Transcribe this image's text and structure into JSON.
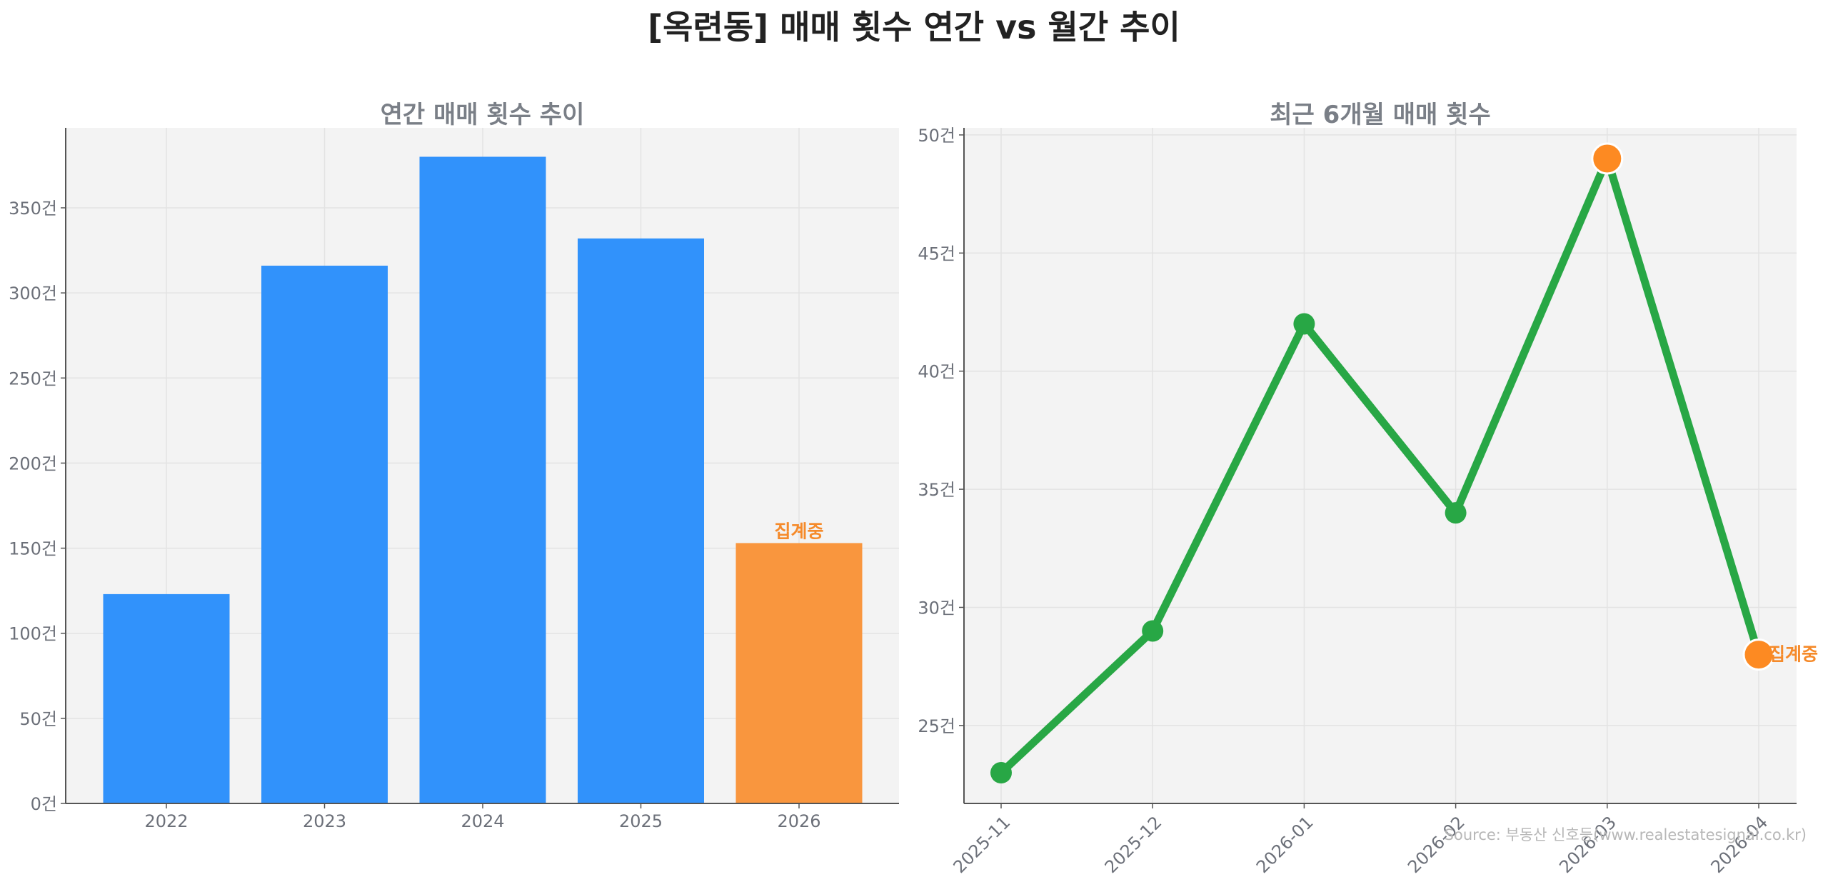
{
  "title": "[옥련동] 매매 횟수 연간 vs 월간 추이",
  "source": "Source: 부동산 신호등(www.realestatesignal.co.kr)",
  "colors": {
    "bar": "#3192fb",
    "highlight": "#f9963e",
    "line": "#28a745",
    "marker_highlight": "#fd8a22"
  },
  "chart_data": [
    {
      "type": "bar",
      "title": "연간 매매 횟수 추이",
      "categories": [
        "2022",
        "2023",
        "2024",
        "2025",
        "2026"
      ],
      "values": [
        123,
        316,
        380,
        332,
        153
      ],
      "highlight_index": 4,
      "annotation": "집계중",
      "ylim": [
        0,
        397
      ],
      "yticks": [
        0,
        50,
        100,
        150,
        200,
        250,
        300,
        350
      ],
      "y_unit": "건",
      "grid": true
    },
    {
      "type": "line",
      "title": "최근 6개월 매매 횟수",
      "categories": [
        "2025-11",
        "2025-12",
        "2026-01",
        "2026-02",
        "2026-03",
        "2026-04"
      ],
      "values": [
        23,
        29,
        42,
        34,
        49,
        28
      ],
      "highlight_indices": [
        4,
        5
      ],
      "annotation": "집계중",
      "ylim": [
        21.7,
        50.3
      ],
      "yticks": [
        25,
        30,
        35,
        40,
        45,
        50
      ],
      "y_unit": "건",
      "grid": true
    }
  ]
}
